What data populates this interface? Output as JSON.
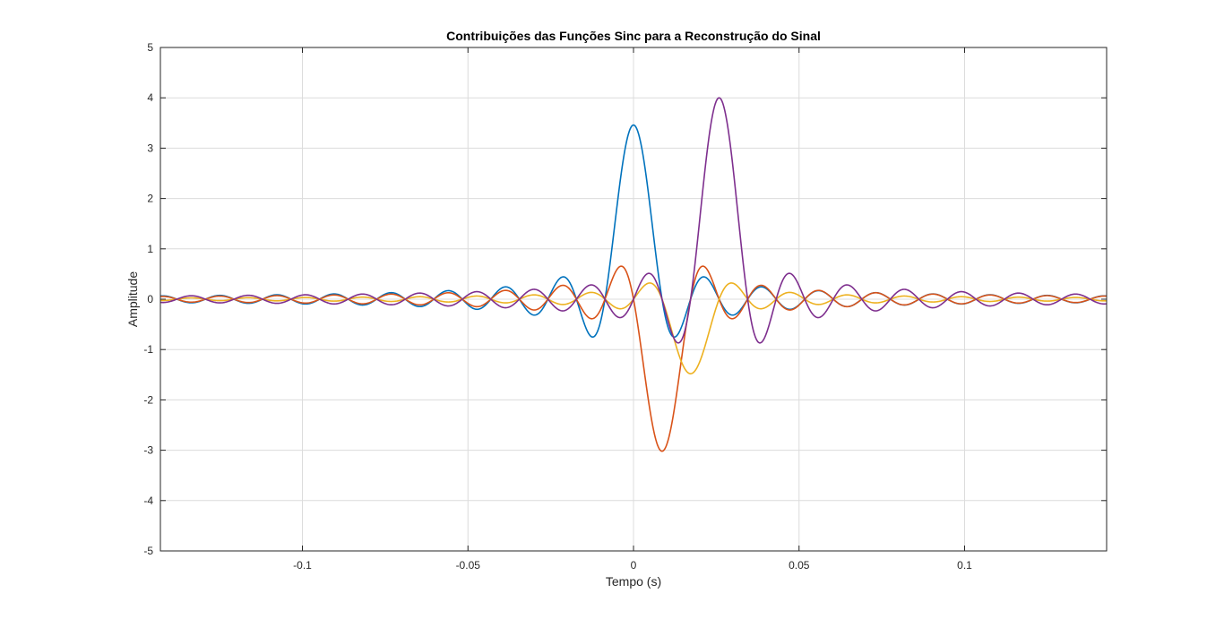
{
  "chart_data": {
    "type": "line",
    "title": "Contribuições das Funções Sinc para a Reconstrução do Sinal",
    "xlabel": "Tempo (s)",
    "ylabel": "Amplitude",
    "xlim": [
      -0.1429,
      0.1429
    ],
    "ylim": [
      -5,
      5
    ],
    "xticks": [
      -0.1,
      -0.05,
      0,
      0.05,
      0.1
    ],
    "xtick_labels": [
      "-0.1",
      "-0.05",
      "0",
      "0.05",
      "0.1"
    ],
    "yticks": [
      -5,
      -4,
      -3,
      -2,
      -1,
      0,
      1,
      2,
      3,
      4,
      5
    ],
    "ytick_labels": [
      "-5",
      "-4",
      "-3",
      "-2",
      "-1",
      "0",
      "1",
      "2",
      "3",
      "4",
      "5"
    ],
    "grid": true,
    "box": true,
    "sample_period": 0.00862,
    "series": [
      {
        "color": "#0072BD",
        "center": 0.0,
        "amplitude": 3.46
      },
      {
        "color": "#D95319",
        "center": 0.00862,
        "amplitude": -3.02
      },
      {
        "color": "#EDB120",
        "center": 0.01724,
        "amplitude": -1.48
      },
      {
        "color": "#7E2F8E",
        "center": 0.02586,
        "amplitude": 4.0
      }
    ]
  }
}
